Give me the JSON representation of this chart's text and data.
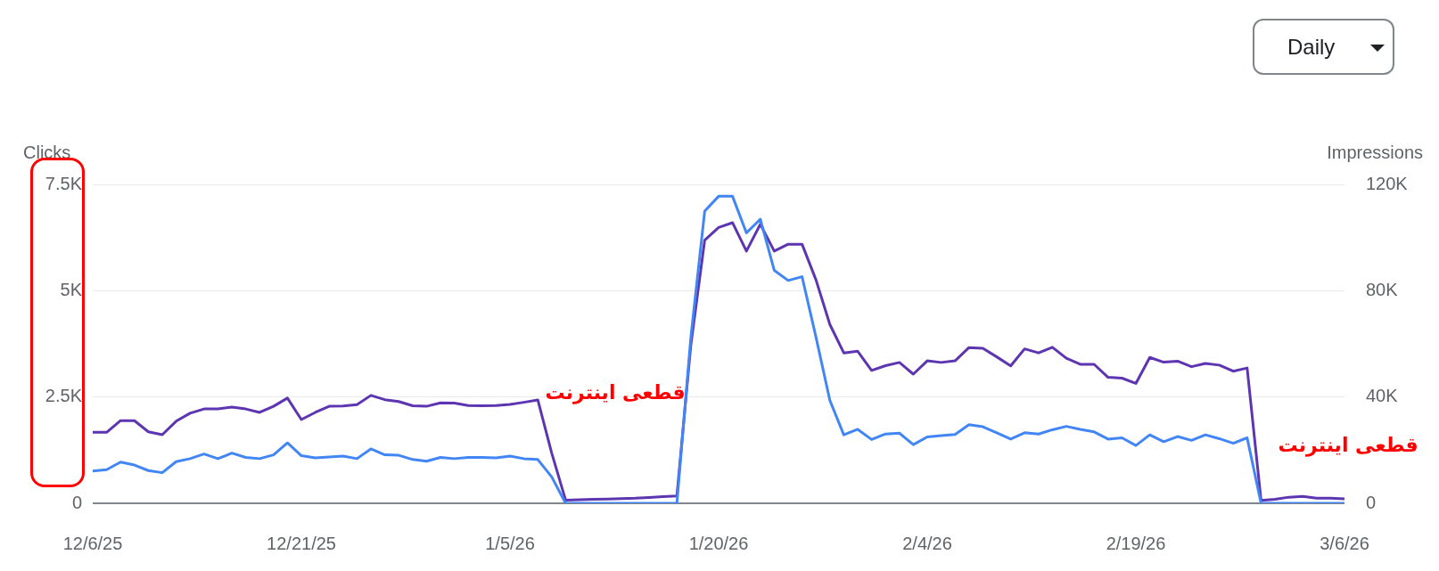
{
  "chart_data": {
    "type": "line",
    "ylabel": "Clicks",
    "y2label": "Impressions",
    "annotations": [
      "قطعی اینترنت",
      "قطعی اینترنت",
      "Daily"
    ],
    "x": [
      "2025-12-06",
      "2025-12-07",
      "2025-12-08",
      "2025-12-09",
      "2025-12-10",
      "2025-12-11",
      "2025-12-12",
      "2025-12-13",
      "2025-12-14",
      "2025-12-15",
      "2025-12-16",
      "2025-12-17",
      "2025-12-18",
      "2025-12-19",
      "2025-12-20",
      "2025-12-21",
      "2025-12-22",
      "2025-12-23",
      "2025-12-24",
      "2025-12-25",
      "2025-12-26",
      "2025-12-27",
      "2025-12-28",
      "2025-12-29",
      "2025-12-30",
      "2025-12-31",
      "2026-01-01",
      "2026-01-02",
      "2026-01-03",
      "2026-01-04",
      "2026-01-05",
      "2026-01-06",
      "2026-01-07",
      "2026-01-08",
      "2026-01-09",
      "2026-01-10",
      "2026-01-11",
      "2026-01-12",
      "2026-01-13",
      "2026-01-14",
      "2026-01-15",
      "2026-01-16",
      "2026-01-17",
      "2026-01-18",
      "2026-01-19",
      "2026-01-20",
      "2026-01-21",
      "2026-01-22",
      "2026-01-23",
      "2026-01-24",
      "2026-01-25",
      "2026-01-26",
      "2026-01-27",
      "2026-01-28",
      "2026-01-29",
      "2026-01-30",
      "2026-01-31",
      "2026-02-01",
      "2026-02-02",
      "2026-02-03",
      "2026-02-04",
      "2026-02-05",
      "2026-02-06",
      "2026-02-07",
      "2026-02-08",
      "2026-02-09",
      "2026-02-10",
      "2026-02-11",
      "2026-02-12",
      "2026-02-13",
      "2026-02-14",
      "2026-02-15",
      "2026-02-16",
      "2026-02-17",
      "2026-02-18",
      "2026-02-19",
      "2026-02-20",
      "2026-02-21",
      "2026-02-22",
      "2026-02-23",
      "2026-02-24",
      "2026-02-25",
      "2026-02-26",
      "2026-02-27",
      "2026-02-28",
      "2026-03-01",
      "2026-03-02",
      "2026-03-03",
      "2026-03-04",
      "2026-03-05",
      "2026-03-06"
    ],
    "series": [
      {
        "color": "#4285f4",
        "axis": "y",
        "values": [
          760,
          790,
          970,
          900,
          770,
          720,
          980,
          1050,
          1160,
          1050,
          1180,
          1080,
          1050,
          1140,
          1420,
          1120,
          1070,
          1090,
          1110,
          1050,
          1280,
          1140,
          1130,
          1030,
          990,
          1080,
          1050,
          1080,
          1080,
          1070,
          1110,
          1050,
          1030,
          620,
          0,
          0,
          0,
          0,
          0,
          0,
          0,
          0,
          0,
          3890,
          6870,
          7220,
          7220,
          6360,
          6680,
          5480,
          5240,
          5330,
          3910,
          2420,
          1610,
          1740,
          1500,
          1630,
          1650,
          1380,
          1560,
          1590,
          1620,
          1850,
          1800,
          1660,
          1510,
          1660,
          1630,
          1730,
          1810,
          1740,
          1680,
          1510,
          1540,
          1360,
          1610,
          1450,
          1570,
          1480,
          1610,
          1520,
          1410,
          1540,
          0,
          0,
          0,
          0,
          0,
          0,
          0
        ]
      },
      {
        "color": "#5e35b1",
        "axis": "y2",
        "values": [
          26700,
          26700,
          31100,
          31100,
          26900,
          25800,
          30900,
          33900,
          35500,
          35500,
          36200,
          35500,
          34200,
          36500,
          39600,
          31500,
          34200,
          36500,
          36600,
          37100,
          40600,
          39000,
          38300,
          36700,
          36500,
          37800,
          37700,
          36800,
          36700,
          36800,
          37200,
          38000,
          38900,
          18900,
          1200,
          1300,
          1500,
          1600,
          1800,
          1900,
          2200,
          2500,
          2800,
          59400,
          99000,
          103800,
          105600,
          94900,
          105000,
          94900,
          97500,
          97500,
          84100,
          67300,
          56600,
          57200,
          50000,
          51800,
          53000,
          48600,
          53600,
          53000,
          53600,
          58600,
          58300,
          55100,
          51700,
          58100,
          56600,
          58700,
          54600,
          52300,
          52300,
          47400,
          47100,
          45100,
          54900,
          53100,
          53500,
          51400,
          52600,
          52000,
          49700,
          50900,
          1100,
          1500,
          2300,
          2600,
          1900,
          1900,
          1700
        ]
      }
    ],
    "xlim": [
      "2025-12-06",
      "2026-03-06"
    ],
    "xticks": [
      {
        "value": "2025-12-06",
        "label": "12/6/25"
      },
      {
        "value": "2025-12-21",
        "label": "12/21/25"
      },
      {
        "value": "2026-01-05",
        "label": "1/5/26"
      },
      {
        "value": "2026-01-20",
        "label": "1/20/26"
      },
      {
        "value": "2026-02-04",
        "label": "2/4/26"
      },
      {
        "value": "2026-02-19",
        "label": "2/19/26"
      },
      {
        "value": "2026-03-06",
        "label": "3/6/26"
      }
    ],
    "ylim": [
      0,
      7500
    ],
    "yticks": [
      0,
      {
        "value": 2500,
        "label": "2.5K"
      },
      {
        "value": 5000,
        "label": "5K"
      },
      {
        "value": 7500,
        "label": "7.5K"
      }
    ],
    "y2lim": [
      0,
      120000
    ],
    "y2ticks": [
      0,
      {
        "value": 40000,
        "label": "40K"
      },
      {
        "value": 80000,
        "label": "80K"
      },
      {
        "value": 120000,
        "label": "120K"
      }
    ],
    "grid": "y",
    "legend": false,
    "marker": "none",
    "line_style": "solid"
  }
}
